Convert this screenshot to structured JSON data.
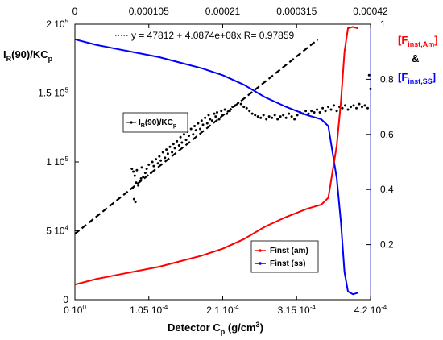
{
  "chart_data": {
    "type": "line",
    "x_axis_bottom": {
      "label_main": "Detector C",
      "label_sub": "p",
      "label_unit": " (g/cm",
      "label_unit_sup": "3",
      "label_unit_end": ")",
      "range": [
        0,
        0.00042
      ],
      "ticks": [
        {
          "value": 0,
          "label": "0 10",
          "sup": "0"
        },
        {
          "value": 0.000105,
          "label": "1.05 10",
          "sup": "-4"
        },
        {
          "value": 0.00021,
          "label": "2.1 10",
          "sup": "-4"
        },
        {
          "value": 0.000315,
          "label": "3.15 10",
          "sup": "-4"
        },
        {
          "value": 0.00042,
          "label": "4.2 10",
          "sup": "-4"
        }
      ]
    },
    "x_axis_top": {
      "range": [
        0,
        0.00042
      ],
      "ticks": [
        {
          "value": 0,
          "label": "0"
        },
        {
          "value": 0.000105,
          "label": "0.000105"
        },
        {
          "value": 0.00021,
          "label": "0.00021"
        },
        {
          "value": 0.000315,
          "label": "0.000315"
        },
        {
          "value": 0.00042,
          "label": "0.00042"
        }
      ]
    },
    "y_axis_left": {
      "label_main": "I",
      "label_sub": "R",
      "label_mid": "(90)/KC",
      "label_sub2": "p",
      "range": [
        0,
        200000
      ],
      "ticks": [
        {
          "value": 0,
          "label": "0",
          "sup": ""
        },
        {
          "value": 50000,
          "label": "5 10",
          "sup": "4"
        },
        {
          "value": 100000,
          "label": "1 10",
          "sup": "5"
        },
        {
          "value": 150000,
          "label": "1.5 10",
          "sup": "5"
        },
        {
          "value": 200000,
          "label": "2 10",
          "sup": "5"
        }
      ]
    },
    "y_axis_right": {
      "range": [
        0,
        1
      ],
      "ticks": [
        {
          "value": 0.2,
          "label": "0.2"
        },
        {
          "value": 0.4,
          "label": "0.4"
        },
        {
          "value": 0.6,
          "label": "0.6"
        },
        {
          "value": 0.8,
          "label": "0.8"
        },
        {
          "value": 1.0,
          "label": "1"
        }
      ],
      "title_line1_main": "[F",
      "title_line1_sub": "inst,Am",
      "title_line1_end": "]",
      "title_amp": "&",
      "title_line3_main": "[F",
      "title_line3_sub": "inst,SS",
      "title_line3_end": "]",
      "title_color_am": "#ff0000",
      "title_color_ss": "#0000ff"
    },
    "fit": {
      "text": "y = 47812 + 4.0874e+08x   R= 0.97859",
      "intercept": 47812,
      "slope": 408740000,
      "x_range": [
        0,
        0.000345
      ]
    },
    "legend_left": {
      "label_main": "I",
      "label_sub": "R",
      "label_rest": "(90)/KC",
      "label_sub2": "p"
    },
    "series": [
      {
        "name": "Finst (am)",
        "axis": "right",
        "color": "#ff0000",
        "x": [
          0,
          3e-05,
          6e-05,
          9e-05,
          0.00012,
          0.00015,
          0.00018,
          0.00021,
          0.00024,
          0.00027,
          0.0003,
          0.00033,
          0.00035,
          0.00036,
          0.000372,
          0.000378,
          0.000383,
          0.000388,
          0.000395,
          0.000402
        ],
        "y": [
          0.055,
          0.075,
          0.09,
          0.105,
          0.12,
          0.14,
          0.16,
          0.185,
          0.22,
          0.265,
          0.3,
          0.33,
          0.345,
          0.37,
          0.56,
          0.72,
          0.9,
          0.985,
          0.99,
          0.985
        ]
      },
      {
        "name": "Finst (ss)",
        "axis": "right",
        "color": "#0000ff",
        "x": [
          0,
          3e-05,
          6e-05,
          9e-05,
          0.00012,
          0.00015,
          0.00018,
          0.00021,
          0.00024,
          0.00027,
          0.0003,
          0.00033,
          0.00035,
          0.00036,
          0.000372,
          0.000378,
          0.000383,
          0.000388,
          0.000395,
          0.000402
        ],
        "y": [
          0.945,
          0.925,
          0.91,
          0.895,
          0.88,
          0.86,
          0.84,
          0.815,
          0.78,
          0.735,
          0.7,
          0.67,
          0.655,
          0.63,
          0.44,
          0.28,
          0.1,
          0.03,
          0.02,
          0.025
        ]
      }
    ],
    "scatter_series": {
      "name_in_legend": "IR(90)/KCp",
      "axis": "left",
      "color": "#000000",
      "points": [
        [
          8.1e-05,
          95000
        ],
        [
          8.2e-05,
          81000
        ],
        [
          8.3e-05,
          93000
        ],
        [
          8.4e-05,
          73000
        ],
        [
          8.5e-05,
          90000
        ],
        [
          8.6e-05,
          71000
        ],
        [
          8.7e-05,
          85000
        ],
        [
          8.8e-05,
          94000
        ],
        [
          9e-05,
          83000
        ],
        [
          9.2e-05,
          86000
        ],
        [
          9.4e-05,
          88000
        ],
        [
          9.5e-05,
          96000
        ],
        [
          9.7e-05,
          89000
        ],
        [
          0.0001,
          92000
        ],
        [
          0.000102,
          95000
        ],
        [
          0.000105,
          98000
        ],
        [
          0.000108,
          92000
        ],
        [
          0.00011,
          100000
        ],
        [
          0.000112,
          97000
        ],
        [
          0.000115,
          102000
        ],
        [
          0.000118,
          99000
        ],
        [
          0.00012,
          104000
        ],
        [
          0.000122,
          101000
        ],
        [
          0.000125,
          107000
        ],
        [
          0.000128,
          103000
        ],
        [
          0.00013,
          109000
        ],
        [
          0.000132,
          106000
        ],
        [
          0.000135,
          111000
        ],
        [
          0.000138,
          107000
        ],
        [
          0.00014,
          113000
        ],
        [
          0.000142,
          110000
        ],
        [
          0.000145,
          115000
        ],
        [
          0.000148,
          112000
        ],
        [
          0.00015,
          118000
        ],
        [
          0.000152,
          114000
        ],
        [
          0.000155,
          120000
        ],
        [
          0.000158,
          116000
        ],
        [
          0.00016,
          122000
        ],
        [
          0.000162,
          119000
        ],
        [
          0.000165,
          124000
        ],
        [
          0.000168,
          120000
        ],
        [
          0.00017,
          126000
        ],
        [
          0.000172,
          123000
        ],
        [
          0.000175,
          128000
        ],
        [
          0.000178,
          124000
        ],
        [
          0.00018,
          130000
        ],
        [
          0.000182,
          127000
        ],
        [
          0.000185,
          132000
        ],
        [
          0.000188,
          128000
        ],
        [
          0.00019,
          134000
        ],
        [
          0.000192,
          131000
        ],
        [
          0.000195,
          130000
        ],
        [
          0.000198,
          135000
        ],
        [
          0.0002,
          133000
        ],
        [
          0.000202,
          136000
        ],
        [
          0.000205,
          131000
        ],
        [
          0.000208,
          137000
        ],
        [
          0.00021,
          134000
        ],
        [
          0.000213,
          138000
        ],
        [
          0.000216,
          135000
        ],
        [
          0.00022,
          137000
        ],
        [
          0.000224,
          140000
        ],
        [
          0.000228,
          141000
        ],
        [
          0.000232,
          143000
        ],
        [
          0.000236,
          142000
        ],
        [
          0.00024,
          140000
        ],
        [
          0.000244,
          139000
        ],
        [
          0.000248,
          137000
        ],
        [
          0.000252,
          135000
        ],
        [
          0.000256,
          134000
        ],
        [
          0.00026,
          133000
        ],
        [
          0.000264,
          132000
        ],
        [
          0.000268,
          134000
        ],
        [
          0.000272,
          131000
        ],
        [
          0.000276,
          133000
        ],
        [
          0.00028,
          132000
        ],
        [
          0.000284,
          134000
        ],
        [
          0.000288,
          131000
        ],
        [
          0.000292,
          133000
        ],
        [
          0.000296,
          134000
        ],
        [
          0.0003,
          132000
        ],
        [
          0.000304,
          135000
        ],
        [
          0.000308,
          133000
        ],
        [
          0.000312,
          131000
        ],
        [
          0.000316,
          134000
        ],
        [
          0.00032,
          136000
        ],
        [
          0.000324,
          135000
        ],
        [
          0.000328,
          137000
        ],
        [
          0.000332,
          135000
        ],
        [
          0.000336,
          137000
        ],
        [
          0.00034,
          136000
        ],
        [
          0.000344,
          138000
        ],
        [
          0.000348,
          136000
        ],
        [
          0.000352,
          139000
        ],
        [
          0.000356,
          137000
        ],
        [
          0.00036,
          140000
        ],
        [
          0.000364,
          138000
        ],
        [
          0.000368,
          141000
        ],
        [
          0.000372,
          137000
        ],
        [
          0.000376,
          140000
        ],
        [
          0.00038,
          139000
        ],
        [
          0.000384,
          141000
        ],
        [
          0.000388,
          138000
        ],
        [
          0.000392,
          140000
        ],
        [
          0.000396,
          141000
        ],
        [
          0.0004,
          139000
        ],
        [
          0.000404,
          142000
        ],
        [
          0.000408,
          140000
        ],
        [
          0.000412,
          141000
        ],
        [
          0.000416,
          139000
        ],
        [
          0.000418,
          163000
        ],
        [
          0.00042,
          153000
        ]
      ]
    }
  }
}
